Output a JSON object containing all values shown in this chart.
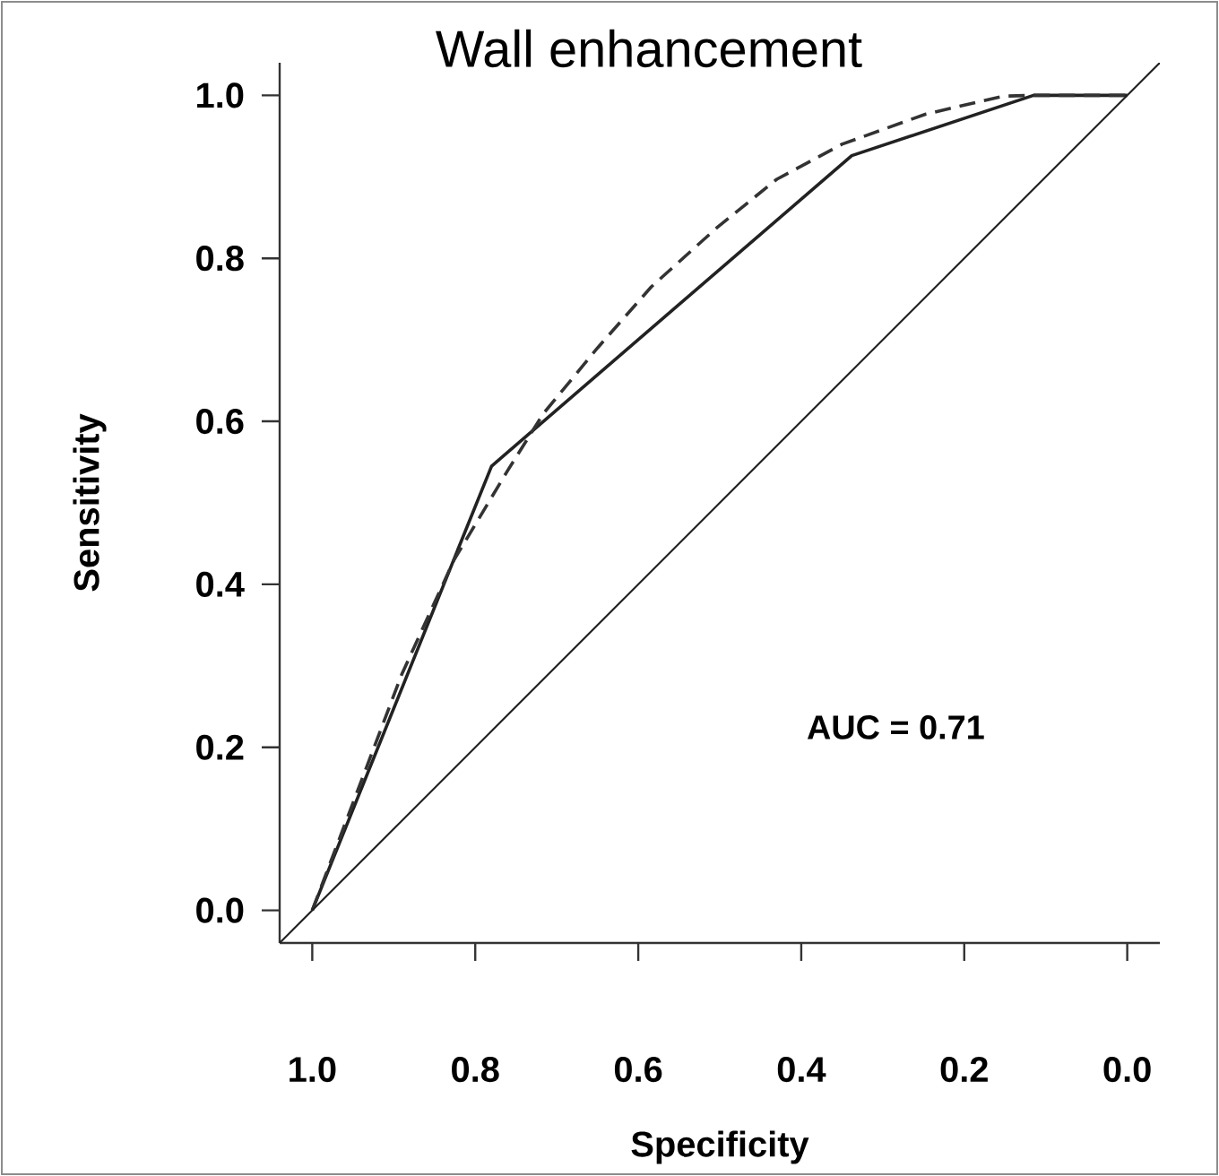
{
  "chart_data": {
    "type": "line",
    "title": "Wall enhancement",
    "xlabel": "Specificity",
    "ylabel": "Sensitivity",
    "xlim": [
      1.04,
      -0.04
    ],
    "ylim": [
      -0.04,
      1.04
    ],
    "xticks": [
      {
        "value": 1.0,
        "label": "1.0"
      },
      {
        "value": 0.8,
        "label": "0.8"
      },
      {
        "value": 0.6,
        "label": "0.6"
      },
      {
        "value": 0.4,
        "label": "0.4"
      },
      {
        "value": 0.2,
        "label": "0.2"
      },
      {
        "value": 0.0,
        "label": "0.0"
      }
    ],
    "yticks": [
      {
        "value": 0.0,
        "label": "0.0"
      },
      {
        "value": 0.2,
        "label": "0.2"
      },
      {
        "value": 0.4,
        "label": "0.4"
      },
      {
        "value": 0.6,
        "label": "0.6"
      },
      {
        "value": 0.8,
        "label": "0.8"
      },
      {
        "value": 1.0,
        "label": "1.0"
      }
    ],
    "grid": false,
    "marker": "none",
    "annotations": [
      "AUC = 0.71"
    ],
    "series": [
      {
        "color": "#222222",
        "line_style": "solid",
        "x": [
          1.0,
          0.78,
          0.338,
          0.115,
          0.0
        ],
        "values": [
          0.0,
          0.545,
          0.926,
          1.0,
          1.0
        ]
      },
      {
        "color": "#333333",
        "line_style": "dashed",
        "x": [
          1.0,
          0.89,
          0.826,
          0.76,
          0.716,
          0.65,
          0.584,
          0.503,
          0.43,
          0.35,
          0.247,
          0.152,
          0.115,
          0.0
        ],
        "values": [
          0.0,
          0.29,
          0.43,
          0.54,
          0.61,
          0.69,
          0.765,
          0.838,
          0.897,
          0.94,
          0.977,
          0.999,
          1.0,
          1.0
        ]
      },
      {
        "color": "#222222",
        "line_style": "solid",
        "x": [
          1.04,
          -0.04
        ],
        "values": [
          -0.04,
          1.04
        ]
      }
    ]
  }
}
